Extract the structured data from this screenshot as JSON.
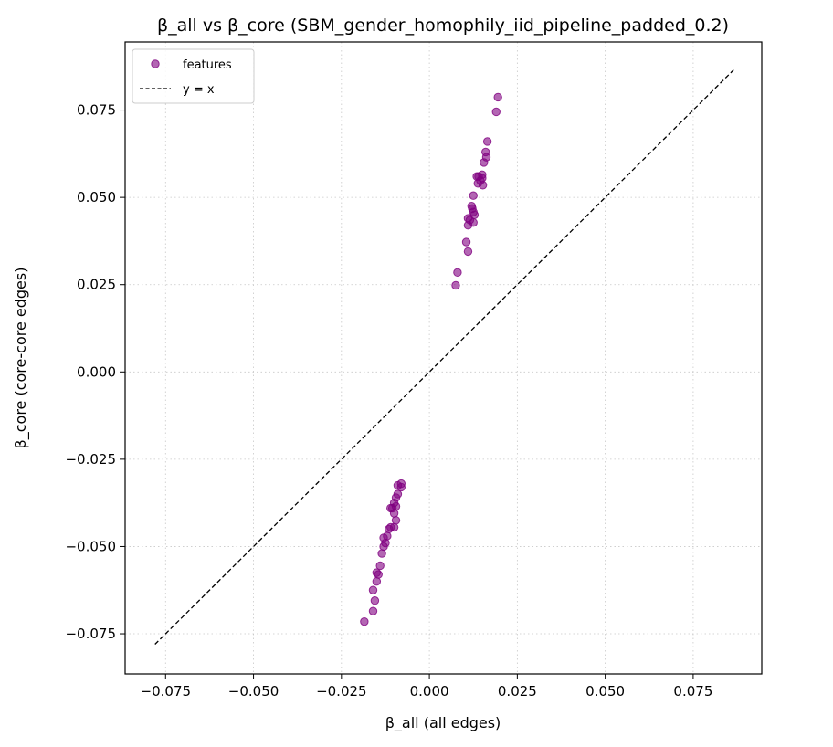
{
  "chart_data": {
    "type": "scatter",
    "title": "β_all vs β_core (SBM_gender_homophily_iid_pipeline_padded_0.2)",
    "xlabel": "β_all (all edges)",
    "ylabel": "β_core (core-core edges)",
    "xlim": [
      -0.0865,
      0.0945
    ],
    "ylim": [
      -0.0865,
      0.0945
    ],
    "xticks": [
      -0.075,
      -0.05,
      -0.025,
      0.0,
      0.025,
      0.05,
      0.075
    ],
    "yticks": [
      -0.075,
      -0.05,
      -0.025,
      0.0,
      0.025,
      0.05,
      0.075
    ],
    "xtick_labels": [
      "−0.075",
      "−0.050",
      "−0.025",
      "0.000",
      "0.025",
      "0.050",
      "0.075"
    ],
    "ytick_labels": [
      "−0.075",
      "−0.050",
      "−0.025",
      "0.000",
      "0.025",
      "0.050",
      "0.075"
    ],
    "grid": true,
    "legend_position": "top-left",
    "series": [
      {
        "name": "features",
        "kind": "scatter",
        "color": "#800080",
        "points": [
          [
            0.0195,
            0.0787
          ],
          [
            0.019,
            0.0745
          ],
          [
            0.0165,
            0.066
          ],
          [
            0.016,
            0.063
          ],
          [
            0.0162,
            0.0615
          ],
          [
            0.0155,
            0.06
          ],
          [
            0.015,
            0.0565
          ],
          [
            0.014,
            0.056
          ],
          [
            0.015,
            0.0555
          ],
          [
            0.0135,
            0.056
          ],
          [
            0.0145,
            0.0548
          ],
          [
            0.0138,
            0.054
          ],
          [
            0.0152,
            0.0535
          ],
          [
            0.0125,
            0.0505
          ],
          [
            0.012,
            0.0475
          ],
          [
            0.0122,
            0.0468
          ],
          [
            0.0125,
            0.0458
          ],
          [
            0.0128,
            0.045
          ],
          [
            0.011,
            0.044
          ],
          [
            0.0115,
            0.0435
          ],
          [
            0.0125,
            0.0428
          ],
          [
            0.011,
            0.042
          ],
          [
            0.0105,
            0.0372
          ],
          [
            0.011,
            0.0345
          ],
          [
            0.008,
            0.0285
          ],
          [
            0.0075,
            0.0248
          ],
          [
            -0.008,
            -0.032
          ],
          [
            -0.009,
            -0.0325
          ],
          [
            -0.008,
            -0.033
          ],
          [
            -0.009,
            -0.035
          ],
          [
            -0.0095,
            -0.036
          ],
          [
            -0.01,
            -0.0375
          ],
          [
            -0.0095,
            -0.0385
          ],
          [
            -0.0105,
            -0.039
          ],
          [
            -0.011,
            -0.039
          ],
          [
            -0.01,
            -0.0405
          ],
          [
            -0.0095,
            -0.0425
          ],
          [
            -0.01,
            -0.0445
          ],
          [
            -0.011,
            -0.0445
          ],
          [
            -0.0115,
            -0.045
          ],
          [
            -0.012,
            -0.047
          ],
          [
            -0.013,
            -0.0475
          ],
          [
            -0.0125,
            -0.049
          ],
          [
            -0.013,
            -0.05
          ],
          [
            -0.0135,
            -0.052
          ],
          [
            -0.014,
            -0.0555
          ],
          [
            -0.015,
            -0.0575
          ],
          [
            -0.0145,
            -0.058
          ],
          [
            -0.015,
            -0.06
          ],
          [
            -0.016,
            -0.0625
          ],
          [
            -0.0155,
            -0.0655
          ],
          [
            -0.016,
            -0.0685
          ],
          [
            -0.0185,
            -0.0715
          ]
        ]
      },
      {
        "name": "y = x",
        "kind": "line",
        "color": "#000000",
        "x": [
          -0.078,
          0.0865
        ],
        "y": [
          -0.078,
          0.0865
        ]
      }
    ]
  }
}
